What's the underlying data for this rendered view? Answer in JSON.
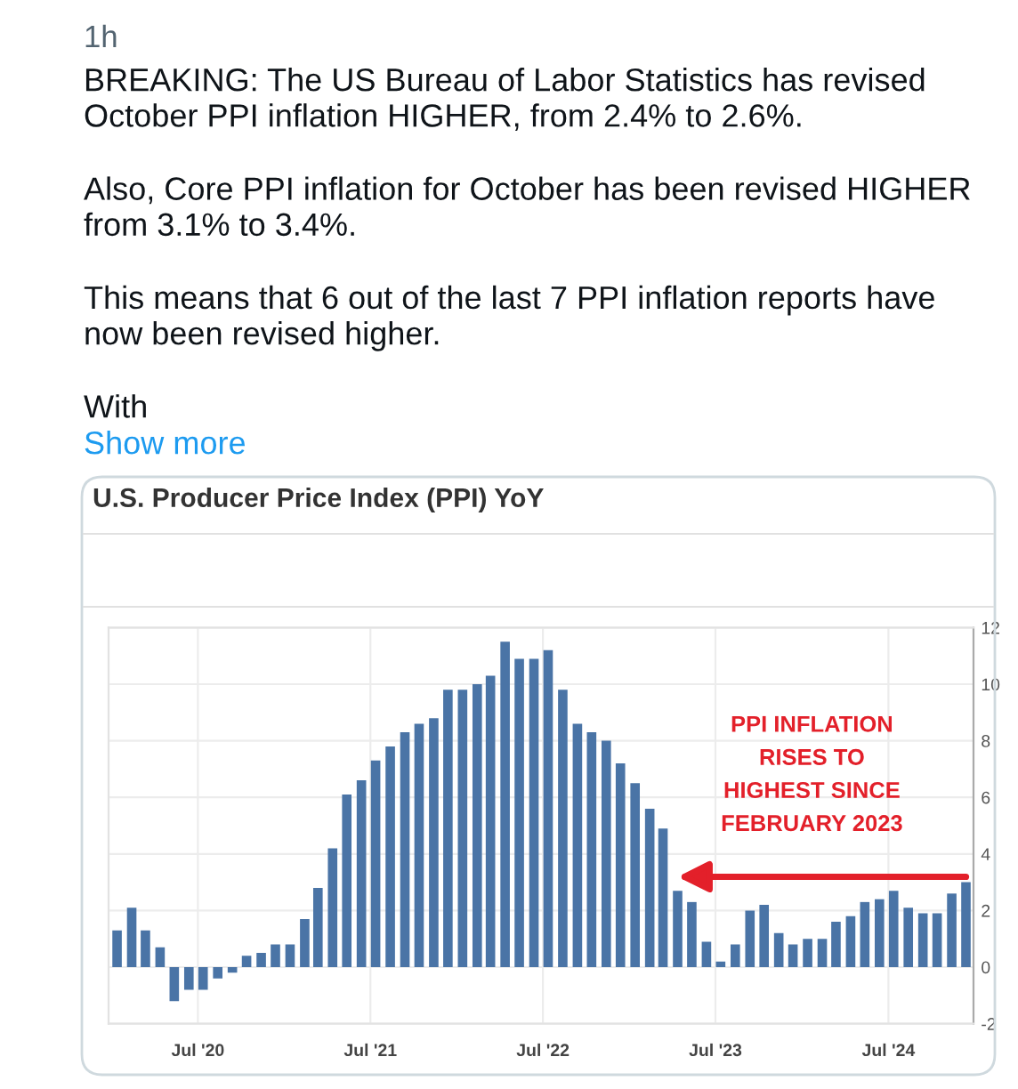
{
  "chart_data": {
    "type": "bar",
    "title": "U.S. Producer Price Index (PPI) YoY",
    "x": [
      "2020-01-12",
      "2020-02-12",
      "2020-03-12",
      "2020-04-12",
      "2020-05-12",
      "2020-06-12",
      "2020-07-12",
      "2020-08-12",
      "2020-09-12",
      "2020-10-12",
      "2020-11-12",
      "2020-12-12",
      "2021-01-12",
      "2021-02-12",
      "2021-03-12",
      "2021-04-12",
      "2021-05-12",
      "2021-06-12",
      "2021-07-12",
      "2021-08-12",
      "2021-09-12",
      "2021-10-12",
      "2021-11-12",
      "2021-12-12",
      "2022-01-12",
      "2022-02-12",
      "2022-03-12",
      "2022-04-12",
      "2022-05-12",
      "2022-06-12",
      "2022-07-12",
      "2022-08-12",
      "2022-09-12",
      "2022-10-12",
      "2022-11-12",
      "2022-12-12",
      "2023-01-12",
      "2023-02-12",
      "2023-03-12",
      "2023-04-12",
      "2023-05-12",
      "2023-06-12",
      "2023-07-12",
      "2023-08-12",
      "2023-09-12",
      "2023-10-12",
      "2023-11-12",
      "2023-12-12",
      "2024-01-12",
      "2024-02-12",
      "2024-03-12",
      "2024-04-12",
      "2024-05-12",
      "2024-06-12",
      "2024-07-12",
      "2024-08-12",
      "2024-09-12",
      "2024-10-12",
      "2024-11-12",
      "2024-12-12"
    ],
    "values": [
      1.3,
      2.1,
      1.3,
      0.7,
      -1.2,
      -0.8,
      -0.8,
      -0.4,
      -0.2,
      0.4,
      0.5,
      0.8,
      0.8,
      1.7,
      2.8,
      4.2,
      6.1,
      6.6,
      7.3,
      7.8,
      8.3,
      8.6,
      8.8,
      9.8,
      9.8,
      10.0,
      10.3,
      11.5,
      10.9,
      10.9,
      11.2,
      9.8,
      8.6,
      8.3,
      8.0,
      7.2,
      6.5,
      5.6,
      4.9,
      2.7,
      2.3,
      0.9,
      0.2,
      0.8,
      2.0,
      2.2,
      1.2,
      0.8,
      1.0,
      1.0,
      1.6,
      1.8,
      2.3,
      2.4,
      2.7,
      2.1,
      1.9,
      1.9,
      2.6,
      3.0
    ],
    "color": "#4a74a6",
    "xlim": [
      "2019-12-25",
      "2024-12-28"
    ],
    "xticks": [
      {
        "value": "2020-07-01",
        "label": "Jul '20"
      },
      {
        "value": "2021-07-01",
        "label": "Jul '21"
      },
      {
        "value": "2022-07-01",
        "label": "Jul '22"
      },
      {
        "value": "2023-07-01",
        "label": "Jul '23"
      },
      {
        "value": "2024-07-01",
        "label": "Jul '24"
      }
    ],
    "ylim": [
      -2,
      12
    ],
    "yticks": [
      -2,
      0,
      2,
      4,
      6,
      8,
      10,
      12
    ],
    "grid": true,
    "annotations": [
      "1h",
      "BREAKING: The US Bureau of Labor Statistics has revised\nOctober PPI inflation HIGHER, from 2.4% to 2.6%.",
      "Also, Core PPI inflation for October has been revised HIGHER\nfrom 3.1% to 3.4%.",
      "This means that 6 out of the last 7 PPI inflation reports have\nnow been revised higher.",
      "With",
      "Show more",
      "PPI INFLATION\nRISES TO\nHIGHEST SINCE\nFEBRUARY 2023"
    ]
  }
}
